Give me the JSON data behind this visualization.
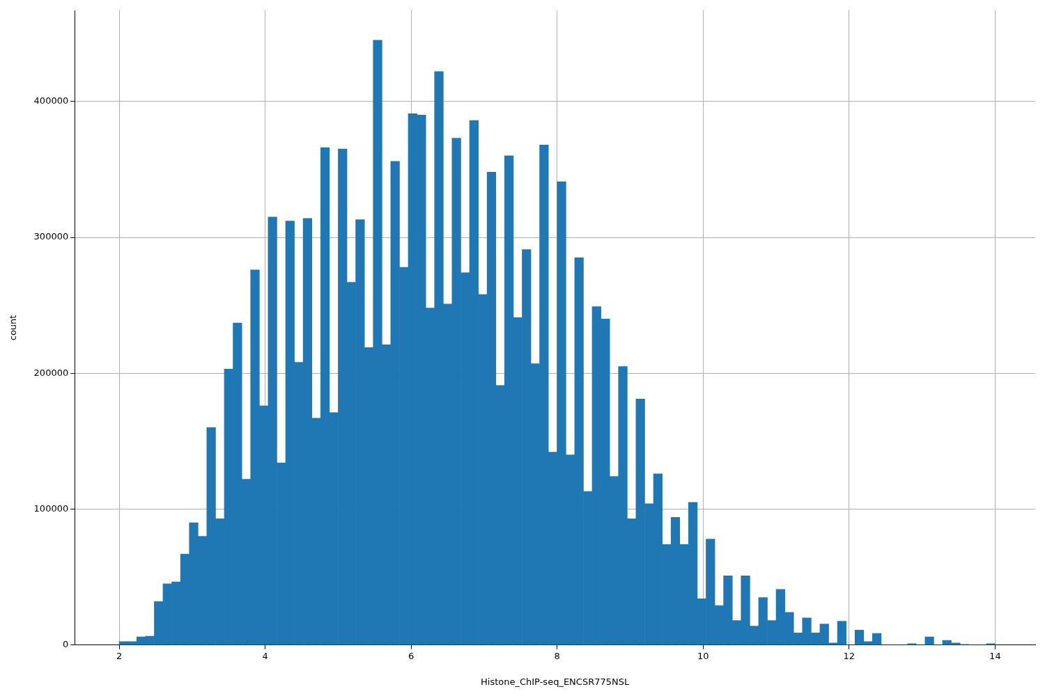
{
  "chart_data": {
    "type": "histogram",
    "xlabel": "Histone_ChIP-seq_ENCSR775NSL",
    "ylabel": "count",
    "color": "#1f77b4",
    "bins": [
      2,
      2.12,
      2.24,
      2.36,
      2.48,
      2.6,
      2.72,
      2.84,
      2.96,
      3.08,
      3.2,
      3.32,
      3.44,
      3.56,
      3.68,
      3.8,
      3.92,
      4.04,
      4.16,
      4.28,
      4.4,
      4.52,
      4.64,
      4.76,
      4.88,
      5,
      5.12,
      5.24,
      5.36,
      5.48,
      5.6,
      5.72,
      5.84,
      5.96,
      6.08,
      6.2,
      6.32,
      6.44,
      6.56,
      6.68,
      6.8,
      6.92,
      7.04,
      7.16,
      7.28,
      7.4,
      7.52,
      7.64,
      7.76,
      7.88,
      8,
      8.12,
      8.24,
      8.36,
      8.48,
      8.6,
      8.72,
      8.84,
      8.96,
      9.08,
      9.2,
      9.32,
      9.44,
      9.56,
      9.68,
      9.8,
      9.92,
      10.04,
      10.16,
      10.28,
      10.4,
      10.52,
      10.64,
      10.76,
      10.88,
      11,
      11.12,
      11.24,
      11.36,
      11.48,
      11.6,
      11.72,
      11.84,
      11.96,
      12.08,
      12.2,
      12.32,
      12.44,
      12.56,
      12.68,
      12.8,
      12.92,
      13.04,
      13.16,
      13.28,
      13.4,
      13.52,
      13.64,
      13.76,
      13.88,
      14
    ],
    "values": [
      2500,
      2500,
      6000,
      6500,
      32000,
      45000,
      46500,
      67000,
      90000,
      80000,
      160000,
      93000,
      203000,
      237000,
      122000,
      276000,
      176000,
      315000,
      134000,
      312000,
      208000,
      314000,
      167000,
      366000,
      171000,
      365000,
      267000,
      313000,
      219000,
      445000,
      221000,
      356000,
      278000,
      391000,
      390000,
      248000,
      422000,
      251000,
      373000,
      274000,
      386000,
      258000,
      348000,
      191000,
      360000,
      241000,
      291000,
      207000,
      368000,
      142000,
      341000,
      140000,
      285000,
      113000,
      249000,
      240000,
      124000,
      205000,
      93000,
      181000,
      104000,
      126000,
      74000,
      94000,
      74000,
      105000,
      34000,
      78000,
      29000,
      51000,
      18000,
      51000,
      14000,
      35000,
      18000,
      41000,
      24000,
      9000,
      20000,
      9000,
      15500,
      1500,
      17500,
      0,
      11000,
      2500,
      8500,
      0,
      0,
      0,
      1000,
      0,
      6000,
      0,
      3500,
      1500,
      500,
      0,
      0,
      1000
    ],
    "xlim": [
      1.39,
      14.55
    ],
    "ylim": [
      0,
      467000
    ],
    "xticks": [
      2,
      4,
      6,
      8,
      10,
      12,
      14
    ],
    "yticks": [
      0,
      100000,
      200000,
      300000,
      400000
    ],
    "grid": true
  }
}
